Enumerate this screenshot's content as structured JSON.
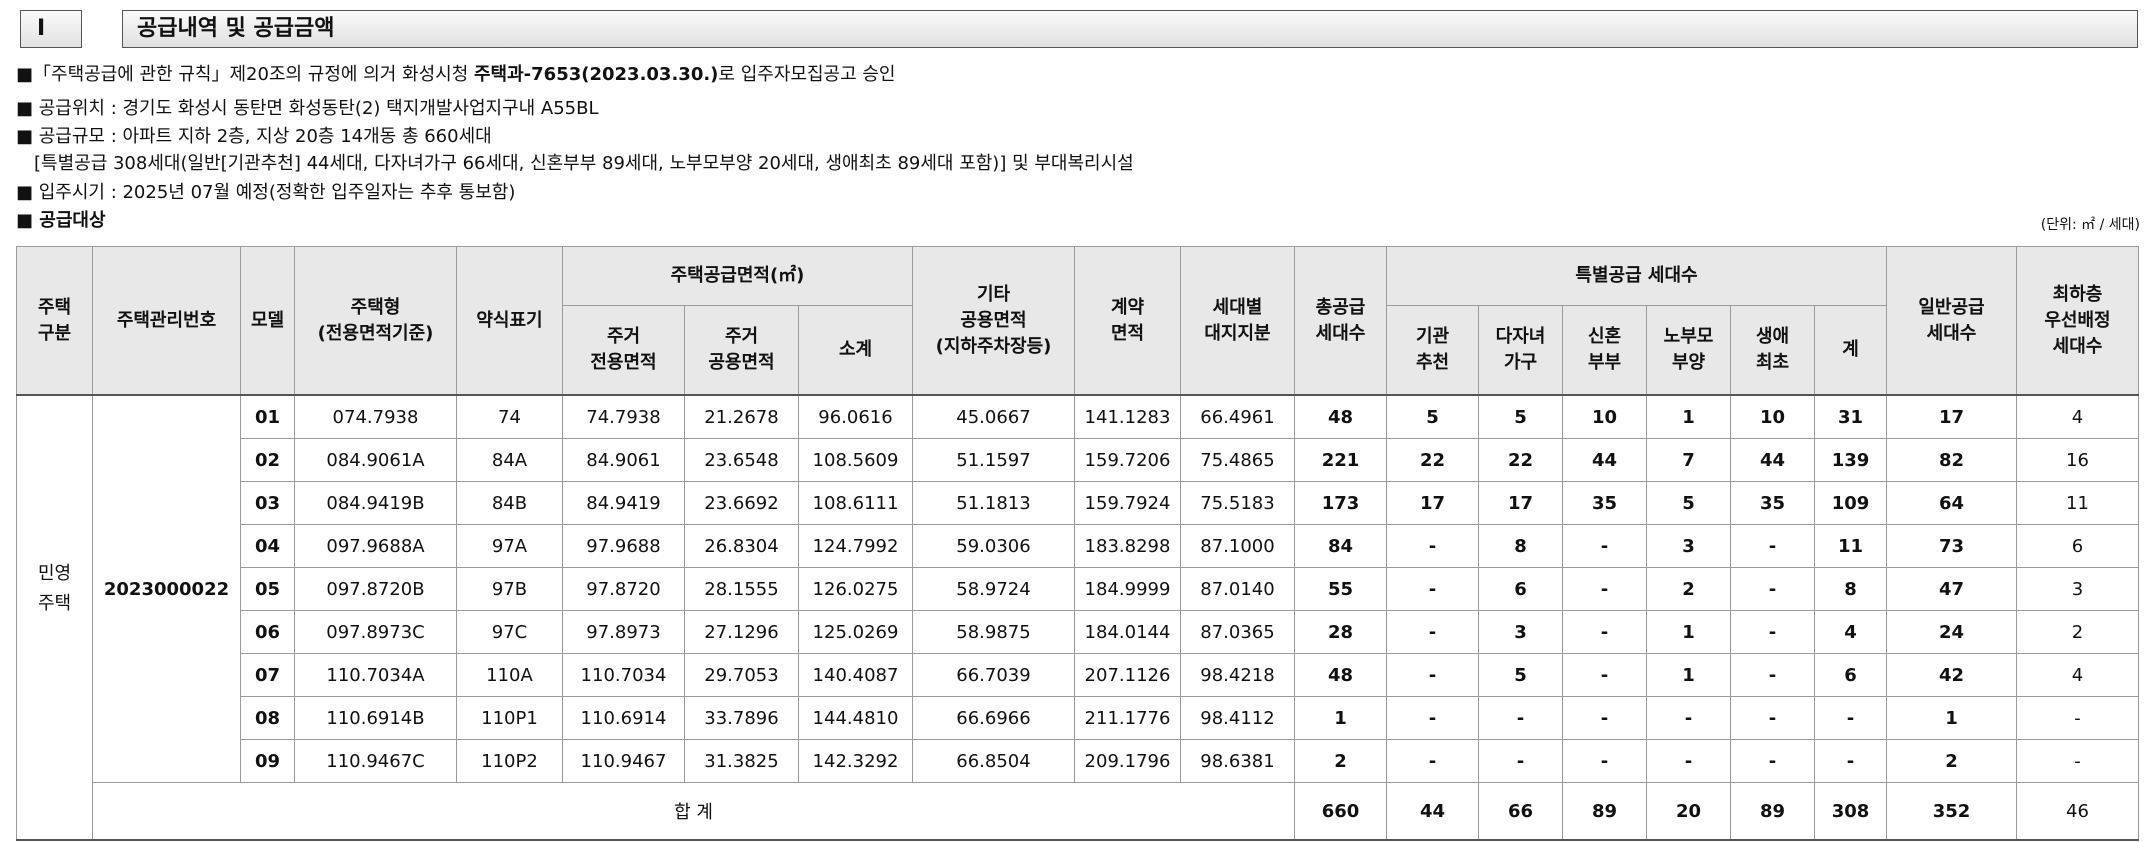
{
  "section": {
    "number": "I",
    "title": "공급내역 및 공급금액"
  },
  "notes": {
    "n1_pre": "■「주택공급에 관한 규칙」제20조의 규정에 의거 화성시청 ",
    "n1_bold": "주택과-7653(2023.03.30.)",
    "n1_post": "로 입주자모집공고 승인",
    "n2": "■ 공급위치 : 경기도 화성시 동탄면 화성동탄(2) 택지개발사업지구내 A55BL",
    "n3": "■ 공급규모 : 아파트 지하 2층, 지상 20층 14개동 총 660세대",
    "n4": "[특별공급 308세대(일반[기관추천] 44세대, 다자녀가구 66세대, 신혼부부 89세대, 노부모부양 20세대, 생애최초 89세대 포함)] 및 부대복리시설",
    "n5": "■ 입주시기 : 2025년 07월 예정(정확한 입주일자는 추후 통보함)",
    "n6": "■ 공급대상"
  },
  "unit": "(단위: ㎡ / 세대)",
  "headers": {
    "type": "주택\n구분",
    "mgmt_no": "주택관리번호",
    "model": "모델",
    "house_type": "주택형\n(전용면적기준)",
    "abbr": "약식표기",
    "area_group": "주택공급면적(㎡)",
    "excl": "주거\n전용면적",
    "common": "주거\n공용면적",
    "subtotal": "소계",
    "other_common": "기타\n공용면적\n(지하주차장등)",
    "contract": "계약\n면적",
    "land": "세대별\n대지지분",
    "total_units": "총공급\n세대수",
    "special_group": "특별공급 세대수",
    "sp_inst": "기관\n추천",
    "sp_multi": "다자녀\n가구",
    "sp_newlywed": "신혼\n부부",
    "sp_elder": "노부모\n부양",
    "sp_first": "생애\n최초",
    "sp_sum": "계",
    "general": "일반공급\n세대수",
    "lowest_floor": "최하층\n우선배정\n세대수"
  },
  "rows_meta": {
    "type_label": "민영\n주택",
    "mgmt_no": "2023000022"
  },
  "rows": [
    [
      "01",
      "074.7938",
      "74",
      "74.7938",
      "21.2678",
      "96.0616",
      "45.0667",
      "141.1283",
      "66.4961",
      "48",
      "5",
      "5",
      "10",
      "1",
      "10",
      "31",
      "17",
      "4"
    ],
    [
      "02",
      "084.9061A",
      "84A",
      "84.9061",
      "23.6548",
      "108.5609",
      "51.1597",
      "159.7206",
      "75.4865",
      "221",
      "22",
      "22",
      "44",
      "7",
      "44",
      "139",
      "82",
      "16"
    ],
    [
      "03",
      "084.9419B",
      "84B",
      "84.9419",
      "23.6692",
      "108.6111",
      "51.1813",
      "159.7924",
      "75.5183",
      "173",
      "17",
      "17",
      "35",
      "5",
      "35",
      "109",
      "64",
      "11"
    ],
    [
      "04",
      "097.9688A",
      "97A",
      "97.9688",
      "26.8304",
      "124.7992",
      "59.0306",
      "183.8298",
      "87.1000",
      "84",
      "-",
      "8",
      "-",
      "3",
      "-",
      "11",
      "73",
      "6"
    ],
    [
      "05",
      "097.8720B",
      "97B",
      "97.8720",
      "28.1555",
      "126.0275",
      "58.9724",
      "184.9999",
      "87.0140",
      "55",
      "-",
      "6",
      "-",
      "2",
      "-",
      "8",
      "47",
      "3"
    ],
    [
      "06",
      "097.8973C",
      "97C",
      "97.8973",
      "27.1296",
      "125.0269",
      "58.9875",
      "184.0144",
      "87.0365",
      "28",
      "-",
      "3",
      "-",
      "1",
      "-",
      "4",
      "24",
      "2"
    ],
    [
      "07",
      "110.7034A",
      "110A",
      "110.7034",
      "29.7053",
      "140.4087",
      "66.7039",
      "207.1126",
      "98.4218",
      "48",
      "-",
      "5",
      "-",
      "1",
      "-",
      "6",
      "42",
      "4"
    ],
    [
      "08",
      "110.6914B",
      "110P1",
      "110.6914",
      "33.7896",
      "144.4810",
      "66.6966",
      "211.1776",
      "98.4112",
      "1",
      "-",
      "-",
      "-",
      "-",
      "-",
      "-",
      "1",
      "-"
    ],
    [
      "09",
      "110.9467C",
      "110P2",
      "110.9467",
      "31.3825",
      "142.3292",
      "66.8504",
      "209.1796",
      "98.6381",
      "2",
      "-",
      "-",
      "-",
      "-",
      "-",
      "-",
      "2",
      "-"
    ]
  ],
  "total": {
    "label": "합 계",
    "values": [
      "660",
      "44",
      "66",
      "89",
      "20",
      "89",
      "308",
      "352",
      "46"
    ]
  }
}
